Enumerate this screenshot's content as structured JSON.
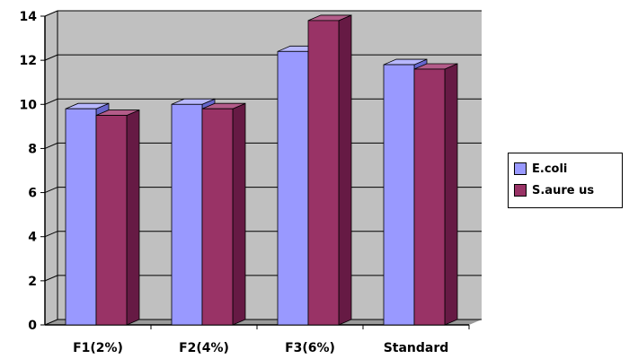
{
  "chart_data": {
    "type": "bar",
    "categories": [
      "F1(2%)",
      "F2(4%)",
      "F3(6%)",
      "Standard"
    ],
    "series": [
      {
        "name": "E.coli",
        "values": [
          9.8,
          10.0,
          12.4,
          11.8
        ]
      },
      {
        "name": "S.aure us",
        "values": [
          9.5,
          9.8,
          13.8,
          11.6
        ]
      }
    ],
    "title": "",
    "xlabel": "",
    "ylabel": "",
    "ylim": [
      0,
      14
    ],
    "yticks": [
      "0",
      "2",
      "4",
      "6",
      "8",
      "10",
      "12",
      "14"
    ],
    "grid": true,
    "legend_position": "right"
  },
  "colors": {
    "series_front": [
      "#9999ff",
      "#993366"
    ],
    "series_side": [
      "#6666cc",
      "#661a44"
    ],
    "series_top": [
      "#b8b8ff",
      "#b35c89"
    ],
    "wall": "#c0c0c0",
    "floor": "#9a9a9a",
    "grid": "#000000"
  }
}
